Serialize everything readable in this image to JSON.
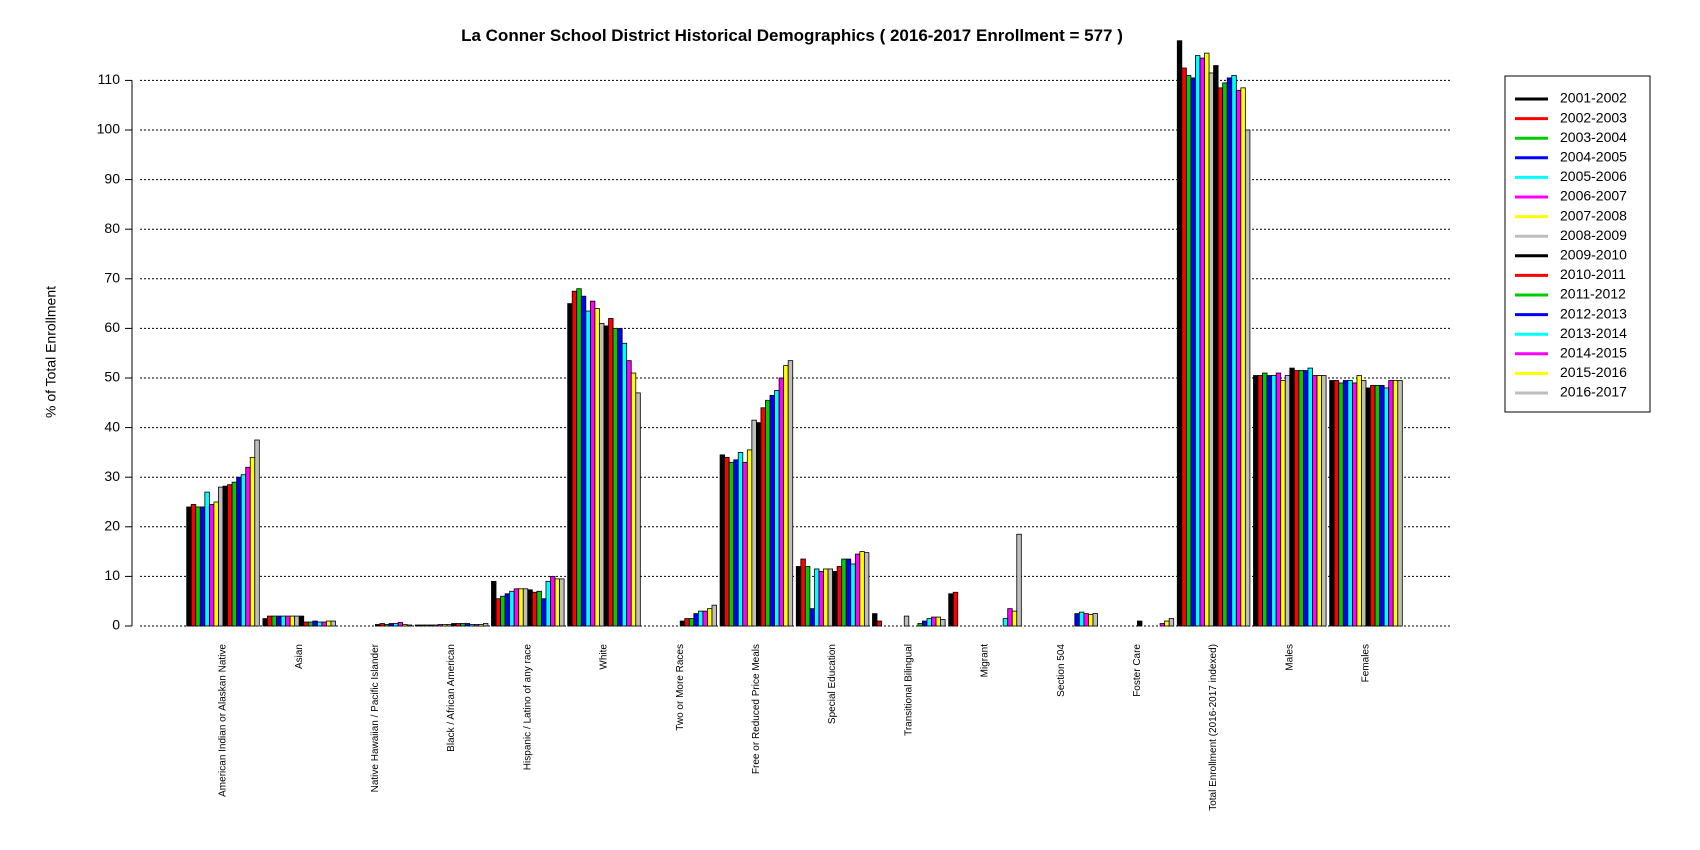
{
  "chart_data": {
    "type": "bar",
    "title": "La Conner School District Historical Demographics  ( 2016-2017 Enrollment =  577 )",
    "y_label": "% of Total Enrollment",
    "categories": [
      "American Indian or Alaskan Native",
      "Asian",
      "Native Hawaiian / Pacific Islander",
      "Black / African American",
      "Hispanic / Latino of any race",
      "White",
      "Two or More Races",
      "Free or Reduced Price Meals",
      "Special Education",
      "Transitional Bilingual",
      "Migrant",
      "Section 504",
      "Foster Care",
      "Total Enrollment (2016-2017 indexed)",
      "Males",
      "Females"
    ],
    "ylim": [
      0,
      118
    ],
    "yticks": [
      0,
      10,
      20,
      30,
      40,
      50,
      60,
      70,
      80,
      90,
      100,
      110
    ],
    "grid": true,
    "legend": "right",
    "series": [
      {
        "name": "2001-2002",
        "color": "#000000",
        "values": [
          24,
          1.5,
          0,
          0.2,
          9,
          65,
          0,
          34.5,
          12,
          2.5,
          6.5,
          0,
          0,
          118,
          50.5,
          49.5
        ]
      },
      {
        "name": "2002-2003",
        "color": "#ff0000",
        "values": [
          24.5,
          2,
          0,
          0.2,
          5.5,
          67.5,
          0,
          34,
          13.5,
          1,
          6.8,
          0,
          0,
          112.5,
          50.5,
          49.5
        ]
      },
      {
        "name": "2003-2004",
        "color": "#00cd00",
        "values": [
          24,
          2,
          0,
          0.2,
          6,
          68,
          0,
          33,
          12,
          0,
          0,
          0,
          0,
          111,
          51,
          49
        ]
      },
      {
        "name": "2004-2005",
        "color": "#0000ff",
        "values": [
          24,
          2,
          0,
          0.2,
          6.5,
          66.5,
          0,
          33.5,
          3.5,
          0,
          0,
          0,
          0,
          110.5,
          50.5,
          49.5
        ]
      },
      {
        "name": "2005-2006",
        "color": "#00ffff",
        "values": [
          27,
          2,
          0,
          0.2,
          7,
          63.5,
          0,
          35,
          11.5,
          0,
          0,
          0,
          0,
          115,
          50.5,
          49.5
        ]
      },
      {
        "name": "2006-2007",
        "color": "#ff00ff",
        "values": [
          24.5,
          2,
          0,
          0.3,
          7.5,
          65.5,
          0,
          33,
          11,
          0,
          0,
          0,
          0,
          114.5,
          51,
          49
        ]
      },
      {
        "name": "2007-2008",
        "color": "#ffff00",
        "values": [
          25,
          2,
          0,
          0.3,
          7.5,
          64,
          0,
          35.5,
          11.5,
          0,
          0,
          0,
          0,
          115.5,
          49.5,
          50.5
        ]
      },
      {
        "name": "2008-2009",
        "color": "#bebebe",
        "values": [
          28,
          2,
          0,
          0.3,
          7.5,
          61,
          0,
          41.5,
          11.5,
          2,
          0,
          0,
          0,
          111.5,
          50.5,
          49.5
        ]
      },
      {
        "name": "2009-2010",
        "color": "#000000",
        "values": [
          28.2,
          2,
          0.3,
          0.5,
          7.3,
          60.5,
          1,
          41,
          11,
          0,
          0,
          0,
          1,
          113,
          52,
          48
        ]
      },
      {
        "name": "2010-2011",
        "color": "#ff0000",
        "values": [
          28.5,
          0.8,
          0.5,
          0.5,
          6.8,
          62,
          1.5,
          44,
          12,
          0,
          0,
          0,
          0,
          108.5,
          51.5,
          48.5
        ]
      },
      {
        "name": "2011-2012",
        "color": "#00cd00",
        "values": [
          29,
          0.8,
          0.3,
          0.5,
          7,
          60,
          1.5,
          45.5,
          13.5,
          0.5,
          0,
          0,
          0,
          109.5,
          51.5,
          48.5
        ]
      },
      {
        "name": "2012-2013",
        "color": "#0000ff",
        "values": [
          30,
          1,
          0.5,
          0.5,
          5.5,
          60,
          2.5,
          46.5,
          13.5,
          1,
          0,
          2.5,
          0,
          110.5,
          51.5,
          48.5
        ]
      },
      {
        "name": "2013-2014",
        "color": "#00ffff",
        "values": [
          30.5,
          0.8,
          0.5,
          0.3,
          9,
          57,
          3,
          47.5,
          12.5,
          1.5,
          1.5,
          2.8,
          0,
          111,
          52,
          48
        ]
      },
      {
        "name": "2014-2015",
        "color": "#ff00ff",
        "values": [
          32,
          0.8,
          0.7,
          0.3,
          10,
          53.5,
          3,
          50,
          14.5,
          1.8,
          3.5,
          2.5,
          0.5,
          108,
          50.5,
          49.5
        ]
      },
      {
        "name": "2015-2016",
        "color": "#ffff00",
        "values": [
          34,
          1,
          0.3,
          0.3,
          9.5,
          51,
          3.5,
          52.5,
          15,
          1.8,
          3,
          2.3,
          1,
          108.5,
          50.5,
          49.5
        ]
      },
      {
        "name": "2016-2017",
        "color": "#bebebe",
        "values": [
          37.5,
          1,
          0.2,
          0.5,
          9.5,
          47,
          4.2,
          53.5,
          14.8,
          1.3,
          18.5,
          2.5,
          1.5,
          100,
          50.5,
          49.5
        ]
      }
    ]
  }
}
